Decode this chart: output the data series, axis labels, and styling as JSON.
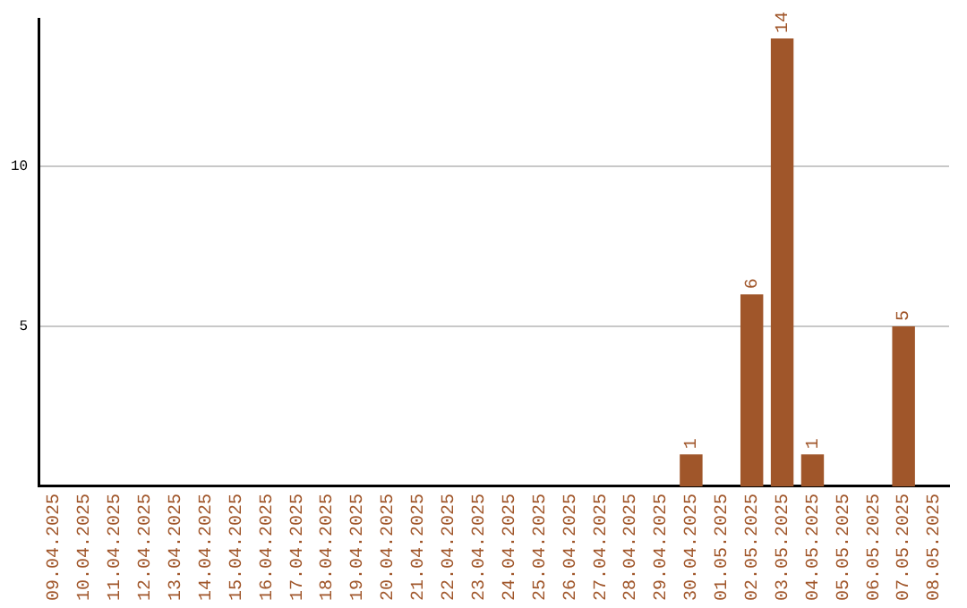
{
  "chart_data": {
    "type": "bar",
    "categories": [
      "09.04.2025",
      "10.04.2025",
      "11.04.2025",
      "12.04.2025",
      "13.04.2025",
      "14.04.2025",
      "15.04.2025",
      "16.04.2025",
      "17.04.2025",
      "18.04.2025",
      "19.04.2025",
      "20.04.2025",
      "21.04.2025",
      "22.04.2025",
      "23.04.2025",
      "24.04.2025",
      "25.04.2025",
      "26.04.2025",
      "27.04.2025",
      "28.04.2025",
      "29.04.2025",
      "30.04.2025",
      "01.05.2025",
      "02.05.2025",
      "03.05.2025",
      "04.05.2025",
      "05.05.2025",
      "06.05.2025",
      "07.05.2025",
      "08.05.2025"
    ],
    "values": [
      0,
      0,
      0,
      0,
      0,
      0,
      0,
      0,
      0,
      0,
      0,
      0,
      0,
      0,
      0,
      0,
      0,
      0,
      0,
      0,
      0,
      1,
      0,
      6,
      14,
      1,
      0,
      0,
      5,
      0
    ],
    "value_labels": [
      null,
      null,
      null,
      null,
      null,
      null,
      null,
      null,
      null,
      null,
      null,
      null,
      null,
      null,
      null,
      null,
      null,
      null,
      null,
      null,
      null,
      "1",
      null,
      "6",
      "14",
      "1",
      null,
      null,
      "5",
      null
    ],
    "color": "#a0562a",
    "ylim": [
      0,
      14.6
    ],
    "yticks": [
      5,
      10
    ],
    "grid": "y",
    "legend": false
  }
}
